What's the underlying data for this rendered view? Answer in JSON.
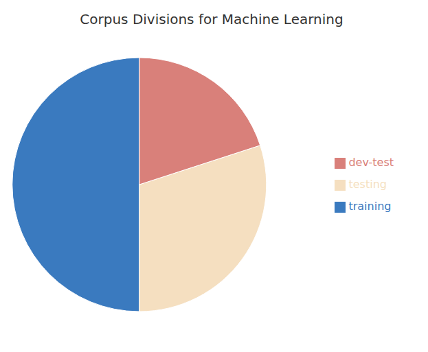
{
  "chart_data": {
    "type": "pie",
    "title": "Corpus Divisions for Machine Learning",
    "categories": [
      "training",
      "testing",
      "dev-test"
    ],
    "values": [
      0.5,
      0.3,
      0.2
    ],
    "colors": [
      "#3a7abf",
      "#f5dfc0",
      "#d9807a"
    ],
    "legend": "right"
  }
}
